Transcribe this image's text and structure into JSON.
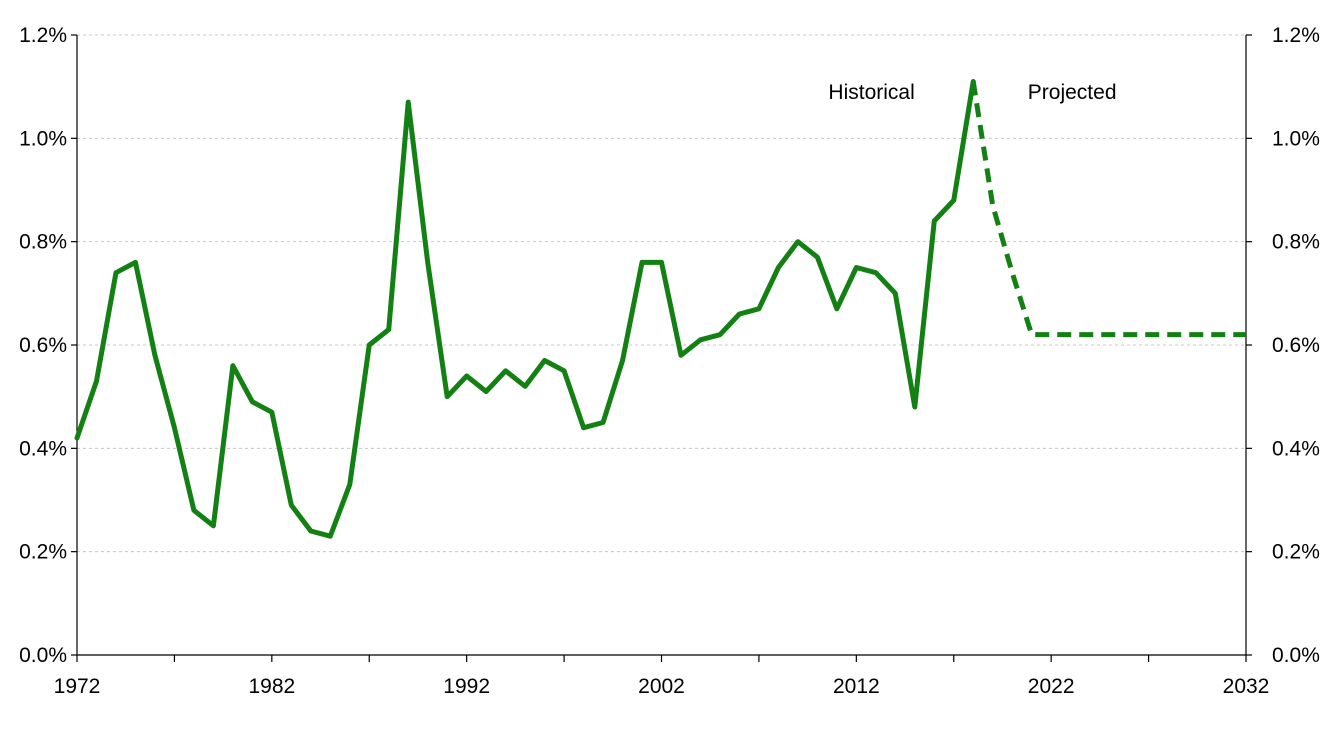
{
  "chart_data": {
    "type": "line",
    "title": "",
    "xlabel": "",
    "ylabel": "",
    "xlim": [
      1972,
      2032
    ],
    "ylim": [
      0,
      1.2
    ],
    "y_unit": "%",
    "grid": true,
    "grid_axis": "y",
    "secondary_y_axis_mirrored": true,
    "x_ticks": [
      1972,
      1982,
      1992,
      2002,
      2012,
      2022,
      2032
    ],
    "x_tick_labels": [
      "1972",
      "1982",
      "1992",
      "2002",
      "2012",
      "2022",
      "2032"
    ],
    "y_ticks": [
      0,
      0.2,
      0.4,
      0.6,
      0.8,
      1.0,
      1.2
    ],
    "y_tick_labels": [
      "0.0%",
      "0.2%",
      "0.4%",
      "0.6%",
      "0.8%",
      "1.0%",
      "1.2%"
    ],
    "annotations": [
      {
        "text": "Historical",
        "x": 2015,
        "y": 1.09,
        "anchor": "end"
      },
      {
        "text": "Projected",
        "x": 2020.8,
        "y": 1.09,
        "anchor": "start"
      }
    ],
    "series": [
      {
        "style": "solid",
        "color": "#138013",
        "x": [
          1972,
          1973,
          1974,
          1975,
          1976,
          1977,
          1978,
          1979,
          1980,
          1981,
          1982,
          1983,
          1984,
          1985,
          1986,
          1987,
          1988,
          1989,
          1990,
          1991,
          1992,
          1993,
          1994,
          1995,
          1996,
          1997,
          1998,
          1999,
          2000,
          2001,
          2002,
          2003,
          2004,
          2005,
          2006,
          2007,
          2008,
          2009,
          2010,
          2011,
          2012,
          2013,
          2014,
          2015,
          2016,
          2017,
          2018
        ],
        "values": [
          0.42,
          0.53,
          0.74,
          0.76,
          0.58,
          0.44,
          0.28,
          0.25,
          0.56,
          0.49,
          0.47,
          0.29,
          0.24,
          0.23,
          0.33,
          0.6,
          0.63,
          1.07,
          0.76,
          0.5,
          0.54,
          0.51,
          0.55,
          0.52,
          0.57,
          0.55,
          0.44,
          0.45,
          0.57,
          0.76,
          0.76,
          0.58,
          0.61,
          0.62,
          0.66,
          0.67,
          0.75,
          0.8,
          0.77,
          0.67,
          0.75,
          0.74,
          0.7,
          0.48,
          0.84,
          0.88,
          1.11
        ]
      },
      {
        "style": "dashed",
        "color": "#138013",
        "x": [
          2018,
          2019,
          2020,
          2021,
          2022,
          2023,
          2024,
          2025,
          2026,
          2027,
          2028,
          2029,
          2030,
          2031,
          2032
        ],
        "values": [
          1.11,
          0.87,
          0.74,
          0.62,
          0.62,
          0.62,
          0.62,
          0.62,
          0.62,
          0.62,
          0.62,
          0.62,
          0.62,
          0.62,
          0.62
        ]
      }
    ]
  }
}
